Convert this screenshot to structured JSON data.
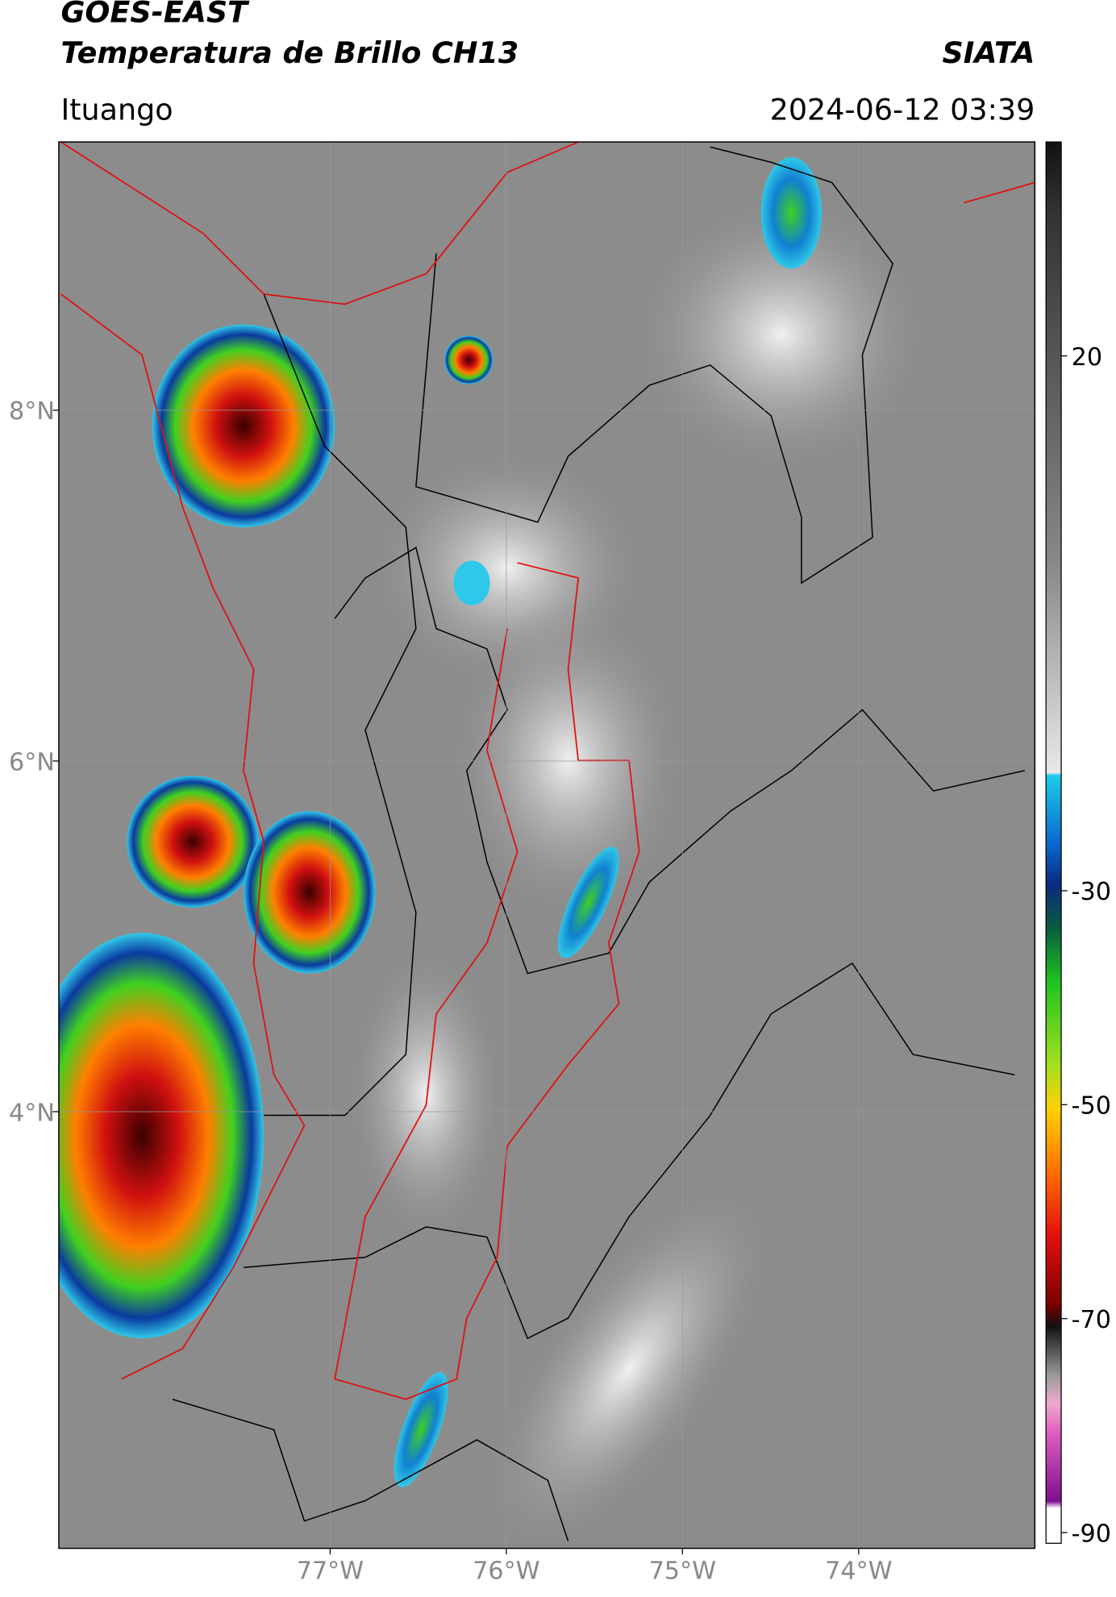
{
  "header": {
    "title_line1": "GOES-EAST",
    "title_line2": "Temperatura de Brillo CH13",
    "organization": "SIATA",
    "location": "Ituango",
    "datetime": "2024-06-12 03:39"
  },
  "map": {
    "xlim": [
      -78.54,
      -73.0
    ],
    "ylim": [
      1.51,
      9.53
    ],
    "xticks": [
      {
        "value": -77,
        "label": "77°W"
      },
      {
        "value": -76,
        "label": "76°W"
      },
      {
        "value": -75,
        "label": "75°W"
      },
      {
        "value": -74,
        "label": "74°W"
      }
    ],
    "yticks": [
      {
        "value": 8,
        "label": "8°N"
      },
      {
        "value": 6,
        "label": "6°N"
      },
      {
        "value": 4,
        "label": "4°N"
      }
    ],
    "grid": true
  },
  "colorbar": {
    "lim": [
      -91,
      40
    ],
    "ticks": [
      20,
      -30,
      -50,
      -70,
      -90
    ]
  }
}
